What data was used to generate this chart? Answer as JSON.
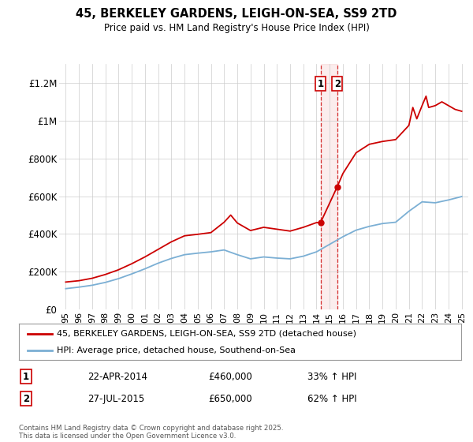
{
  "title": "45, BERKELEY GARDENS, LEIGH-ON-SEA, SS9 2TD",
  "subtitle": "Price paid vs. HM Land Registry's House Price Index (HPI)",
  "ylim": [
    0,
    1300000
  ],
  "yticks": [
    0,
    200000,
    400000,
    600000,
    800000,
    1000000,
    1200000
  ],
  "ytick_labels": [
    "£0",
    "£200K",
    "£400K",
    "£600K",
    "£800K",
    "£1M",
    "£1.2M"
  ],
  "xlim_start": 1994.5,
  "xlim_end": 2025.5,
  "purchase1_date": 2014.31,
  "purchase1_price": 460000,
  "purchase2_date": 2015.57,
  "purchase2_price": 650000,
  "bg_color": "#ffffff",
  "grid_color": "#cccccc",
  "hpi_line_color": "#7bafd4",
  "price_line_color": "#cc0000",
  "vline_color": "#cc0000",
  "legend1_label": "45, BERKELEY GARDENS, LEIGH-ON-SEA, SS9 2TD (detached house)",
  "legend2_label": "HPI: Average price, detached house, Southend-on-Sea",
  "annotation1_num": "1",
  "annotation1_date": "22-APR-2014",
  "annotation1_price": "£460,000",
  "annotation1_hpi": "33% ↑ HPI",
  "annotation2_num": "2",
  "annotation2_date": "27-JUL-2015",
  "annotation2_price": "£650,000",
  "annotation2_hpi": "62% ↑ HPI",
  "footer": "Contains HM Land Registry data © Crown copyright and database right 2025.\nThis data is licensed under the Open Government Licence v3.0.",
  "xtick_years": [
    1995,
    1996,
    1997,
    1998,
    1999,
    2000,
    2001,
    2002,
    2003,
    2004,
    2005,
    2006,
    2007,
    2008,
    2009,
    2010,
    2011,
    2012,
    2013,
    2014,
    2015,
    2016,
    2017,
    2018,
    2019,
    2020,
    2021,
    2022,
    2023,
    2024,
    2025
  ],
  "hpi_years": [
    1995,
    1996,
    1997,
    1998,
    1999,
    2000,
    2001,
    2002,
    2003,
    2004,
    2005,
    2006,
    2007,
    2008,
    2009,
    2010,
    2011,
    2012,
    2013,
    2014,
    2015,
    2016,
    2017,
    2018,
    2019,
    2020,
    2021,
    2022,
    2023,
    2024,
    2025
  ],
  "hpi_values": [
    110000,
    118000,
    128000,
    143000,
    163000,
    188000,
    215000,
    245000,
    270000,
    290000,
    298000,
    305000,
    315000,
    290000,
    268000,
    278000,
    272000,
    268000,
    282000,
    305000,
    345000,
    385000,
    420000,
    440000,
    455000,
    462000,
    520000,
    570000,
    565000,
    580000,
    598000
  ],
  "price_years": [
    1995,
    1996,
    1997,
    1998,
    1999,
    2000,
    2001,
    2002,
    2003,
    2004,
    2005,
    2006,
    2007,
    2007.5,
    2008,
    2009,
    2010,
    2011,
    2012,
    2013,
    2014,
    2014.31,
    2015.57,
    2016,
    2017,
    2018,
    2019,
    2020,
    2021,
    2021.3,
    2021.6,
    2022,
    2022.3,
    2022.5,
    2023,
    2023.5,
    2024,
    2024.5,
    2025
  ],
  "price_values": [
    145000,
    152000,
    165000,
    185000,
    210000,
    242000,
    278000,
    318000,
    358000,
    390000,
    398000,
    407000,
    462000,
    500000,
    458000,
    418000,
    435000,
    425000,
    415000,
    435000,
    460000,
    460000,
    650000,
    720000,
    830000,
    875000,
    890000,
    900000,
    975000,
    1070000,
    1010000,
    1080000,
    1130000,
    1070000,
    1080000,
    1100000,
    1080000,
    1060000,
    1050000
  ]
}
